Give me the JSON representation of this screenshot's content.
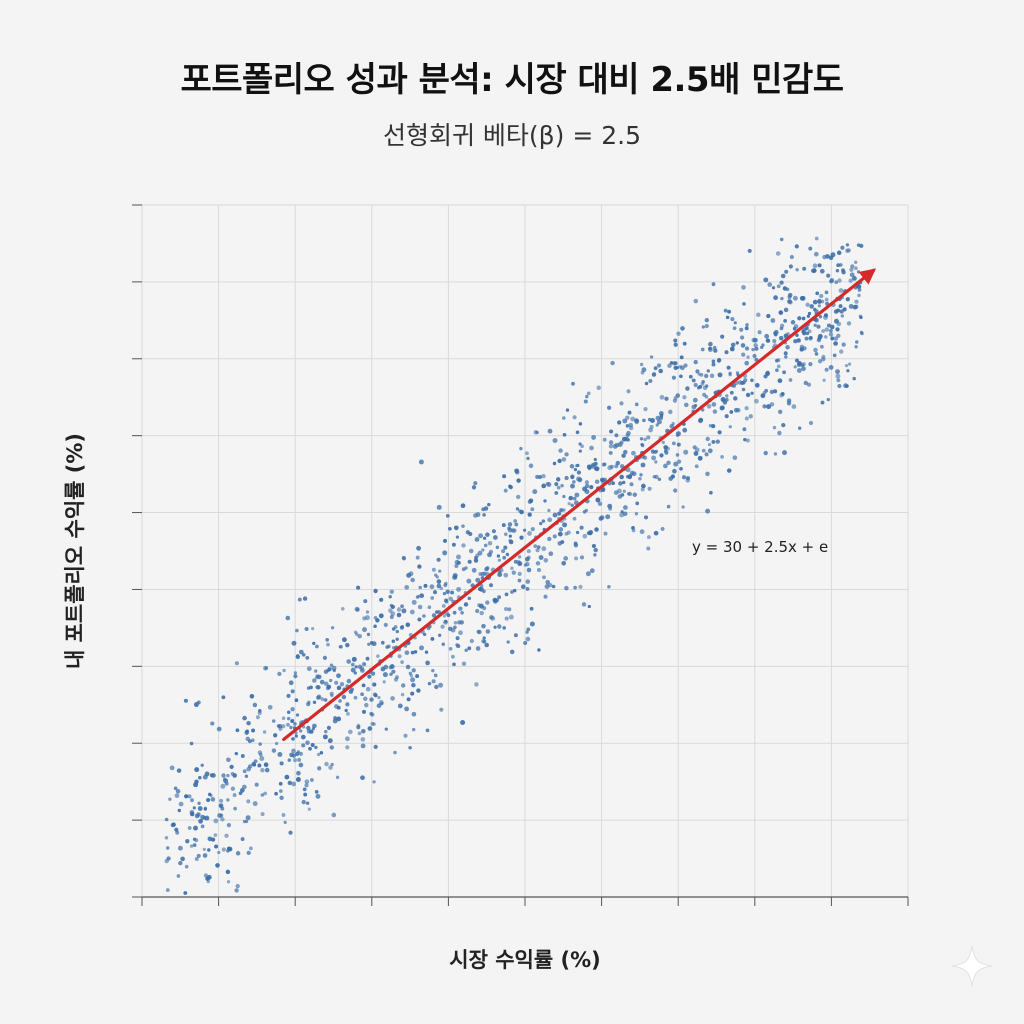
{
  "title": "포트폴리오 성과 분석: 시장 대비 2.5배 민감도",
  "subtitle": "선형회귀 베타(β) = 2.5",
  "colors": {
    "background": "#f4f4f4",
    "grid": "#d9d9d9",
    "axis": "#555555",
    "points": "#3b6ea8",
    "regression_line": "#d42a2a"
  },
  "chart_data": {
    "type": "scatter",
    "title": "포트폴리오 성과 분석: 시장 대비 2.5배 민감도",
    "subtitle": "선형회귀 베타(β) = 2.5",
    "xlabel": "시장 수익률 (%)",
    "ylabel": "내 포트폴리오 수익률 (%)",
    "grid": true,
    "tick_labels_shown": false,
    "x_divisions": 10,
    "y_divisions": 9,
    "beta": 2.5,
    "intercept": 30,
    "equation_label": "y = 30 + 2.5x + e",
    "regression_line": {
      "style": "arrow",
      "start": [
        1.85,
        2.05
      ],
      "end": [
        9.55,
        8.15
      ]
    },
    "scatter": {
      "approx_points": 1500,
      "x_range": [
        0.3,
        9.4
      ],
      "trend": "y ≈ 0.58 + 0.8·x (grid units)",
      "spread": 1.1
    }
  }
}
